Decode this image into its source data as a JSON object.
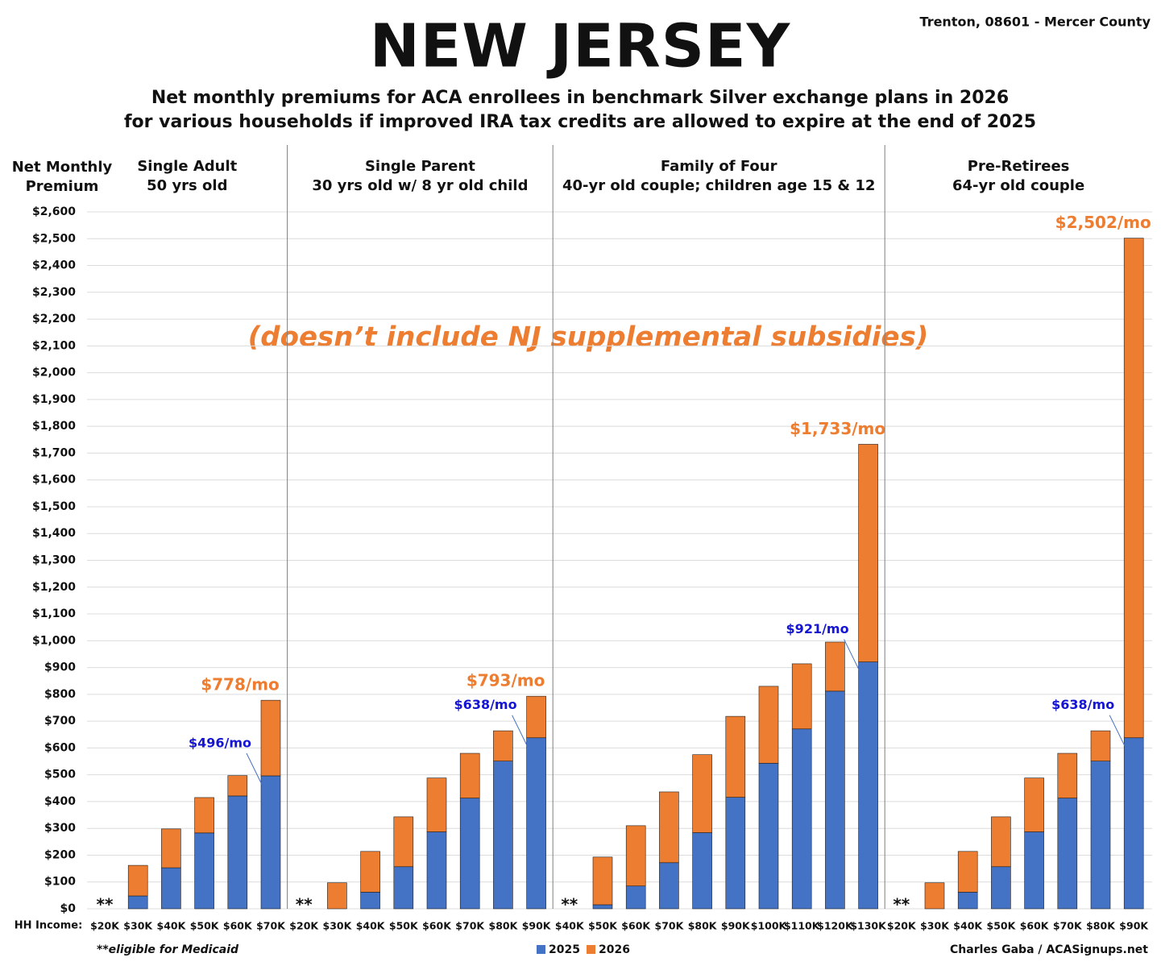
{
  "title": "NEW JERSEY",
  "location": "Trenton, 08601 - Mercer County",
  "subtitle": [
    "Net monthly premiums for ACA enrollees in benchmark Silver exchange plans in 2026",
    "for various households if improved IRA tax credits are allowed to expire at the end of 2025"
  ],
  "y_label": [
    "Net Monthly",
    "Premium"
  ],
  "x_label": "HH Income:",
  "note": "(doesn’t include NJ supplemental subsidies)",
  "footnote": "**eligible for Medicaid",
  "credit": "Charles Gaba / ACASignups.net",
  "chart_data": [
    {
      "type": "bar",
      "stacked": true,
      "title": "Single Adult",
      "subtitle": "50 yrs old",
      "marker": "**",
      "grid": true,
      "ylim": [
        0,
        2600
      ],
      "yticks": [
        {
          "value": 0,
          "label": "$0"
        },
        {
          "value": 100,
          "label": "$100"
        },
        {
          "value": 200,
          "label": "$200"
        },
        {
          "value": 300,
          "label": "$300"
        },
        {
          "value": 400,
          "label": "$400"
        },
        {
          "value": 500,
          "label": "$500"
        },
        {
          "value": 600,
          "label": "$600"
        },
        {
          "value": 700,
          "label": "$700"
        },
        {
          "value": 800,
          "label": "$800"
        },
        {
          "value": 900,
          "label": "$900"
        },
        {
          "value": 1000,
          "label": "$1,000"
        },
        {
          "value": 1100,
          "label": "$1,100"
        },
        {
          "value": 1200,
          "label": "$1,200"
        },
        {
          "value": 1300,
          "label": "$1,300"
        },
        {
          "value": 1400,
          "label": "$1,400"
        },
        {
          "value": 1500,
          "label": "$1,500"
        },
        {
          "value": 1600,
          "label": "$1,600"
        },
        {
          "value": 1700,
          "label": "$1,700"
        },
        {
          "value": 1800,
          "label": "$1,800"
        },
        {
          "value": 1900,
          "label": "$1,900"
        },
        {
          "value": 2000,
          "label": "$2,000"
        },
        {
          "value": 2100,
          "label": "$2,100"
        },
        {
          "value": 2200,
          "label": "$2,200"
        },
        {
          "value": 2300,
          "label": "$2,300"
        },
        {
          "value": 2400,
          "label": "$2,400"
        },
        {
          "value": 2500,
          "label": "$2,500"
        },
        {
          "value": 2600,
          "label": "$2,600"
        }
      ],
      "categories": [
        "$20K",
        "$30K",
        "$40K",
        "$50K",
        "$60K",
        "$70K"
      ],
      "series": [
        {
          "name": "2025",
          "color": "#4472c4",
          "values": [
            null,
            48,
            153,
            283,
            421,
            496
          ],
          "value_labels": [
            null,
            null,
            null,
            null,
            null,
            "$496/mo"
          ]
        },
        {
          "name": "2026",
          "color": "#ed7d31",
          "values": [
            null,
            114,
            145,
            132,
            76,
            282
          ]
        }
      ],
      "total_value_labels": [
        null,
        null,
        null,
        null,
        null,
        "$778/mo"
      ]
    },
    {
      "type": "bar",
      "stacked": true,
      "title": "Single Parent",
      "subtitle": "30 yrs old w/ 8 yr old child",
      "marker": "**",
      "categories": [
        "$20K",
        "$30K",
        "$40K",
        "$50K",
        "$60K",
        "$70K",
        "$80K",
        "$90K"
      ],
      "series": [
        {
          "color": "#4472c4",
          "values": [
            null,
            0,
            62,
            157,
            287,
            413,
            551,
            638
          ],
          "value_labels": [
            null,
            null,
            null,
            null,
            null,
            null,
            null,
            "$638/mo"
          ]
        },
        {
          "color": "#ed7d31",
          "values": [
            null,
            97,
            152,
            186,
            201,
            167,
            113,
            155
          ]
        }
      ],
      "total_value_labels": [
        null,
        null,
        null,
        null,
        null,
        null,
        null,
        "$793/mo"
      ]
    },
    {
      "type": "bar",
      "stacked": true,
      "title": "Family of Four",
      "subtitle": "40-yr old couple; children age 15 & 12",
      "marker": "**",
      "categories": [
        "$40K",
        "$50K",
        "$60K",
        "$70K",
        "$80K",
        "$90K",
        "$100K",
        "$110K",
        "$120K",
        "$130K"
      ],
      "series": [
        {
          "color": "#4472c4",
          "values": [
            null,
            15,
            85,
            172,
            284,
            416,
            543,
            671,
            812,
            921
          ],
          "value_labels": [
            null,
            null,
            null,
            null,
            null,
            null,
            null,
            null,
            null,
            "$921/mo"
          ]
        },
        {
          "color": "#ed7d31",
          "values": [
            null,
            178,
            225,
            264,
            291,
            302,
            287,
            243,
            183,
            812
          ]
        }
      ],
      "total_value_labels": [
        null,
        null,
        null,
        null,
        null,
        null,
        null,
        null,
        null,
        "$1,733/mo"
      ]
    },
    {
      "type": "bar",
      "stacked": true,
      "title": "Pre-Retirees",
      "subtitle": "64-yr old couple",
      "marker": "**",
      "categories": [
        "$20K",
        "$30K",
        "$40K",
        "$50K",
        "$60K",
        "$70K",
        "$80K",
        "$90K"
      ],
      "series": [
        {
          "color": "#4472c4",
          "values": [
            null,
            0,
            62,
            157,
            287,
            413,
            551,
            638
          ],
          "value_labels": [
            null,
            null,
            null,
            null,
            null,
            null,
            null,
            "$638/mo"
          ]
        },
        {
          "color": "#ed7d31",
          "values": [
            null,
            97,
            152,
            186,
            201,
            167,
            113,
            1864
          ]
        }
      ],
      "total_value_labels": [
        null,
        null,
        null,
        null,
        null,
        null,
        null,
        "$2,502/mo"
      ]
    }
  ]
}
